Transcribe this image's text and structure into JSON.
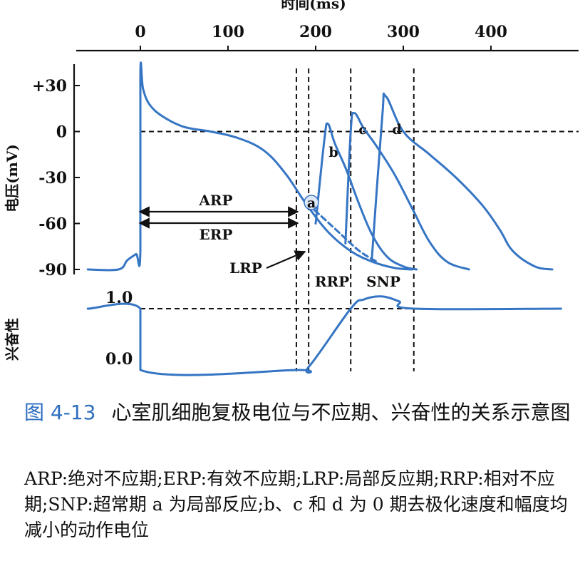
{
  "top_axis": {
    "title": "时间(ms)",
    "ticks": [
      {
        "value": 0,
        "label": "0"
      },
      {
        "value": 100,
        "label": "100"
      },
      {
        "value": 200,
        "label": "200"
      },
      {
        "value": 300,
        "label": "300"
      },
      {
        "value": 400,
        "label": "400"
      }
    ]
  },
  "voltage_axis": {
    "title": "电压(mV)",
    "ticks": [
      {
        "value": 30,
        "label": "+30"
      },
      {
        "value": 0,
        "label": "0"
      },
      {
        "value": -30,
        "label": "-30"
      },
      {
        "value": -60,
        "label": "-60"
      },
      {
        "value": -90,
        "label": "-90"
      }
    ]
  },
  "excitability_axis": {
    "title": "兴奋性",
    "ticks": [
      {
        "value": 1.0,
        "label": "1.0"
      },
      {
        "value": 0.0,
        "label": "0.0"
      }
    ]
  },
  "labels": {
    "arp": "ARP",
    "erp": "ERP",
    "lrp": "LRP",
    "rrp": "RRP",
    "snp": "SNP",
    "point_a": "a",
    "point_b": "b",
    "point_c": "c",
    "point_d": "d"
  },
  "chart_data": {
    "type": "line",
    "x_unit": "ms",
    "y_unit": "mV",
    "x_range": [
      -60,
      480
    ],
    "y_range": [
      -95,
      42
    ],
    "period_boundaries_ms": {
      "erp_end": 178,
      "lrp_end": 192,
      "rrp_end": 240,
      "snp_end": 312
    },
    "action_potentials": [
      {
        "name": "main",
        "x": [
          -60,
          -25,
          -15,
          -5,
          0,
          0,
          3,
          10,
          25,
          50,
          80,
          110,
          140,
          165,
          190,
          215,
          240,
          265,
          290,
          310
        ],
        "y": [
          -90,
          -90,
          -84,
          -80,
          -78,
          38,
          28,
          18,
          10,
          3,
          0,
          -4,
          -12,
          -27,
          -48,
          -66,
          -78,
          -85,
          -89,
          -90
        ]
      },
      {
        "name": "a",
        "x": [
          190,
          200,
          225,
          250,
          270
        ],
        "y": [
          -48,
          -52,
          -65,
          -78,
          -85
        ]
      },
      {
        "name": "b",
        "x": [
          200,
          210,
          214,
          222,
          235,
          250,
          265,
          282,
          300,
          315
        ],
        "y": [
          -60,
          -5,
          5,
          -8,
          -25,
          -48,
          -68,
          -82,
          -88,
          -90
        ]
      },
      {
        "name": "c",
        "x": [
          234,
          240,
          244,
          255,
          270,
          290,
          310,
          330,
          350,
          375
        ],
        "y": [
          -73,
          0,
          12,
          2,
          -10,
          -28,
          -50,
          -72,
          -85,
          -90
        ]
      },
      {
        "name": "d",
        "x": [
          264,
          276,
          280,
          300,
          330,
          360,
          390,
          410,
          425,
          450,
          470
        ],
        "y": [
          -84,
          10,
          23,
          0,
          -15,
          -30,
          -48,
          -64,
          -78,
          -88,
          -90
        ]
      }
    ],
    "excitability": {
      "x": [
        -60,
        0,
        0,
        178,
        192,
        240,
        255,
        275,
        295,
        312,
        480
      ],
      "y": [
        1.0,
        1.0,
        0.0,
        0.0,
        0.05,
        1.0,
        1.15,
        1.2,
        1.12,
        1.0,
        1.0
      ]
    }
  },
  "caption": {
    "figure_number": "图 4-13",
    "title": "心室肌细胞复极电位与不应期、兴奋性的关系示意图",
    "notes": "ARP:绝对不应期;ERP:有效不应期;LRP:局部反应期;RRP:相对不应期;SNP:超常期 a 为局部反应;b、c 和 d 为 0 期去极化速度和幅度均减小的动作电位"
  }
}
